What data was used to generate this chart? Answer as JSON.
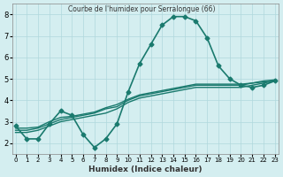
{
  "title": "Courbe de l'humidex pour Serralongue (66)",
  "xlabel": "Humidex (Indice chaleur)",
  "ylabel": "",
  "bg_color": "#d4eef0",
  "grid_color": "#b0d8dc",
  "line_color": "#1a7a6e",
  "xlim": [
    0,
    23
  ],
  "ylim": [
    1.5,
    8.5
  ],
  "xticks": [
    0,
    1,
    2,
    3,
    4,
    5,
    6,
    7,
    8,
    9,
    10,
    11,
    12,
    13,
    14,
    15,
    16,
    17,
    18,
    19,
    20,
    21,
    22,
    23
  ],
  "yticks": [
    2,
    3,
    4,
    5,
    6,
    7,
    8
  ],
  "lines": [
    {
      "x": [
        0,
        1,
        2,
        3,
        4,
        5,
        6,
        7,
        8,
        9,
        10,
        11,
        12,
        13,
        14,
        15,
        16,
        17,
        18,
        19,
        20,
        21,
        22,
        23
      ],
      "y": [
        2.8,
        2.2,
        2.2,
        2.9,
        3.5,
        3.3,
        2.4,
        1.8,
        2.2,
        2.9,
        4.4,
        5.7,
        6.6,
        7.5,
        7.9,
        7.9,
        7.7,
        6.9,
        5.6,
        5.0,
        4.7,
        4.6,
        4.7,
        4.9
      ],
      "marker": "D",
      "markersize": 2.5,
      "linewidth": 1.2
    },
    {
      "x": [
        0,
        1,
        2,
        3,
        4,
        5,
        6,
        7,
        8,
        9,
        10,
        11,
        12,
        13,
        14,
        15,
        16,
        17,
        18,
        19,
        20,
        21,
        22,
        23
      ],
      "y": [
        2.5,
        2.5,
        2.6,
        2.8,
        3.0,
        3.1,
        3.2,
        3.3,
        3.4,
        3.6,
        3.9,
        4.1,
        4.2,
        4.3,
        4.4,
        4.5,
        4.6,
        4.6,
        4.6,
        4.6,
        4.6,
        4.7,
        4.8,
        4.9
      ],
      "marker": null,
      "markersize": 0,
      "linewidth": 1.0
    },
    {
      "x": [
        0,
        1,
        2,
        3,
        4,
        5,
        6,
        7,
        8,
        9,
        10,
        11,
        12,
        13,
        14,
        15,
        16,
        17,
        18,
        19,
        20,
        21,
        22,
        23
      ],
      "y": [
        2.6,
        2.6,
        2.7,
        2.9,
        3.1,
        3.2,
        3.3,
        3.4,
        3.6,
        3.7,
        4.0,
        4.2,
        4.3,
        4.4,
        4.5,
        4.6,
        4.7,
        4.7,
        4.7,
        4.7,
        4.7,
        4.8,
        4.85,
        4.9
      ],
      "marker": null,
      "markersize": 0,
      "linewidth": 1.0
    },
    {
      "x": [
        0,
        1,
        2,
        3,
        4,
        5,
        6,
        7,
        8,
        9,
        10,
        11,
        12,
        13,
        14,
        15,
        16,
        17,
        18,
        19,
        20,
        21,
        22,
        23
      ],
      "y": [
        2.7,
        2.7,
        2.75,
        3.0,
        3.2,
        3.25,
        3.35,
        3.45,
        3.65,
        3.8,
        4.05,
        4.25,
        4.35,
        4.45,
        4.55,
        4.65,
        4.75,
        4.75,
        4.75,
        4.75,
        4.75,
        4.8,
        4.9,
        4.95
      ],
      "marker": null,
      "markersize": 0,
      "linewidth": 1.0
    }
  ]
}
